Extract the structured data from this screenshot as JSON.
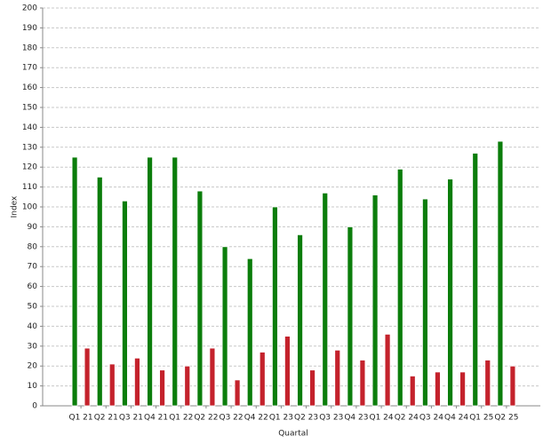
{
  "chart_data": {
    "type": "bar",
    "x_label": "Quartal",
    "y_label": "Index",
    "categories": [
      "Q1 21",
      "Q2 21",
      "Q3 21",
      "Q4 21",
      "Q1 22",
      "Q2 22",
      "Q3 22",
      "Q4 22",
      "Q1 23",
      "Q2 23",
      "Q3 23",
      "Q4 23",
      "Q1 24",
      "Q2 24",
      "Q3 24",
      "Q4 24",
      "Q1 25",
      "Q2 25"
    ],
    "series": [
      {
        "color": "#0b7d0b",
        "values": [
          125,
          115,
          103,
          125,
          125,
          108,
          80,
          74,
          100,
          86,
          107,
          90,
          106,
          119,
          104,
          114,
          127,
          133
        ]
      },
      {
        "color": "#c4222c",
        "values": [
          29,
          21,
          24,
          18,
          20,
          29,
          13,
          27,
          35,
          18,
          28,
          23,
          36,
          15,
          17,
          17,
          23,
          20
        ]
      }
    ],
    "ylim": [
      0,
      200
    ],
    "yticks": [
      0,
      10,
      20,
      30,
      40,
      50,
      60,
      70,
      80,
      90,
      100,
      110,
      120,
      130,
      140,
      150,
      160,
      170,
      180,
      190,
      200
    ],
    "grid": true
  }
}
